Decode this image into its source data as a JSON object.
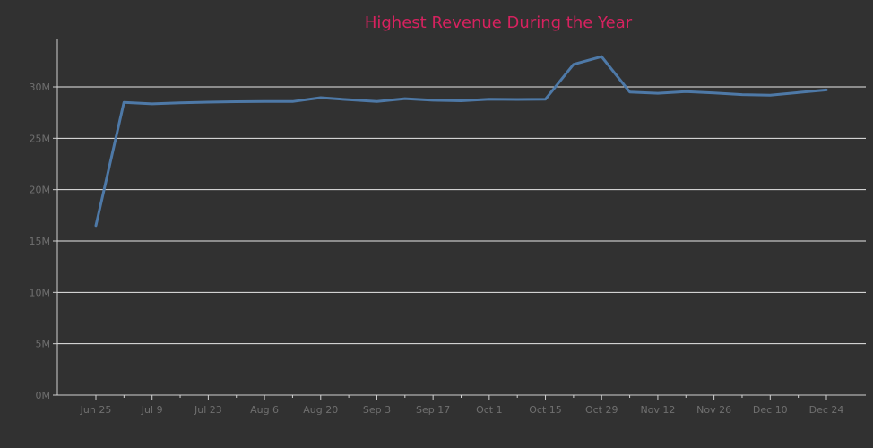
{
  "colors": {
    "background": "#313131",
    "title": "#d6225f",
    "series": "#4e79a7",
    "grid": "#e8e8e8",
    "axis": "#d0d0d0",
    "tick_label": "#6f6f6f"
  },
  "chart_data": {
    "type": "line",
    "title": "Highest Revenue During the Year",
    "xlabel": "",
    "ylabel": "",
    "grid": true,
    "legend": "none",
    "x_axis": {
      "type": "date",
      "range": [
        "2023-06-20",
        "2023-12-31"
      ],
      "tick_labels": [
        "Jun 25",
        "Jul 9",
        "Jul 23",
        "Aug 6",
        "Aug 20",
        "Sep 3",
        "Sep 17",
        "Oct 1",
        "Oct 15",
        "Oct 29",
        "Nov 12",
        "Nov 26",
        "Dec 10",
        "Dec 24"
      ]
    },
    "y_axis": {
      "range": [
        0,
        34000000
      ],
      "ticks": [
        {
          "value": 0,
          "label": "0M"
        },
        {
          "value": 5000000,
          "label": "5M"
        },
        {
          "value": 10000000,
          "label": "10M"
        },
        {
          "value": 15000000,
          "label": "15M"
        },
        {
          "value": 20000000,
          "label": "20M"
        },
        {
          "value": 25000000,
          "label": "25M"
        },
        {
          "value": 30000000,
          "label": "30M"
        }
      ]
    },
    "x": [
      "2023-06-25",
      "2023-07-02",
      "2023-07-09",
      "2023-07-16",
      "2023-07-23",
      "2023-07-30",
      "2023-08-06",
      "2023-08-13",
      "2023-08-20",
      "2023-08-27",
      "2023-09-03",
      "2023-09-10",
      "2023-09-17",
      "2023-09-24",
      "2023-10-01",
      "2023-10-08",
      "2023-10-15",
      "2023-10-22",
      "2023-10-29",
      "2023-11-05",
      "2023-11-12",
      "2023-11-19",
      "2023-11-26",
      "2023-12-03",
      "2023-12-10",
      "2023-12-17",
      "2023-12-24"
    ],
    "series": [
      {
        "values": [
          16500000,
          28500000,
          28350000,
          28450000,
          28520000,
          28560000,
          28580000,
          28580000,
          28950000,
          28750000,
          28580000,
          28860000,
          28700000,
          28650000,
          28800000,
          28780000,
          28800000,
          32200000,
          32950000,
          29500000,
          29380000,
          29550000,
          29420000,
          29250000,
          29200000,
          29450000,
          29700000
        ]
      }
    ]
  }
}
